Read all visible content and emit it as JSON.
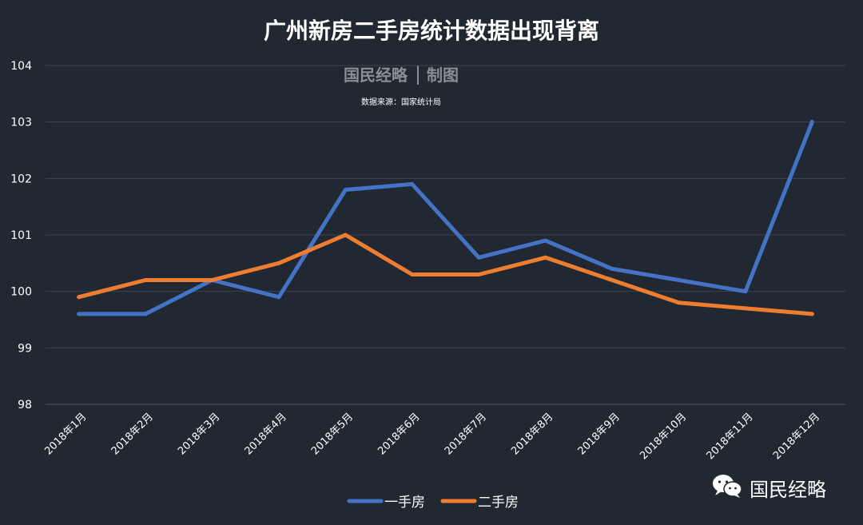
{
  "chart_data": {
    "type": "line",
    "title": "广州新房二手房统计数据出现背离",
    "categories": [
      "2018年1月",
      "2018年2月",
      "2018年3月",
      "2018年4月",
      "2018年5月",
      "2018年6月",
      "2018年7月",
      "2018年8月",
      "2018年9月",
      "2018年10月",
      "2018年11月",
      "2018年12月"
    ],
    "series": [
      {
        "name": "一手房",
        "color": "#4472C4",
        "values": [
          99.6,
          99.6,
          100.2,
          99.9,
          101.8,
          101.9,
          100.6,
          100.9,
          100.4,
          100.2,
          100.0,
          103.0
        ]
      },
      {
        "name": "二手房",
        "color": "#ED7D31",
        "values": [
          99.9,
          100.2,
          100.2,
          100.5,
          101.0,
          100.3,
          100.3,
          100.6,
          100.2,
          99.8,
          99.7,
          99.6
        ]
      }
    ],
    "ylim": [
      98,
      104
    ],
    "yticks": [
      "98",
      "99",
      "100",
      "101",
      "102",
      "103",
      "104"
    ],
    "grid": true,
    "legend": "bottom-center",
    "xlabel": "",
    "ylabel": ""
  },
  "watermark": {
    "brand": "国民经略",
    "made": "制图",
    "source": "数据来源：国家统计局"
  },
  "footer_brand": {
    "label": "国民经略",
    "icon": "wechat-icon"
  },
  "colors": {
    "background": "#212832",
    "grid": "#3a4350",
    "axis_text": "#ffffff",
    "watermark": "#8a8f96"
  }
}
